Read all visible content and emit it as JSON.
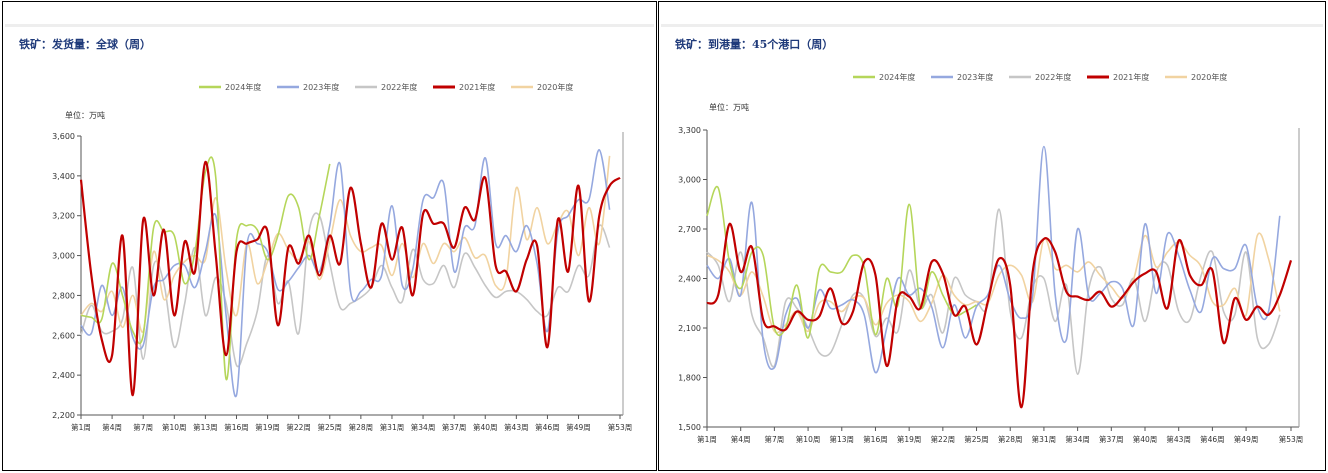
{
  "colors": {
    "2024年度": "#b5d65a",
    "2023年度": "#95a8df",
    "2022年度": "#c6c6c6",
    "2021年度": "#c00000",
    "2020年度": "#f1d3a1"
  },
  "chart_data": [
    {
      "type": "line",
      "title": "铁矿：发货量：全球（周）",
      "unit_label": "单位：万吨",
      "xlabel": "",
      "ylabel": "",
      "ylim": [
        2200,
        3600
      ],
      "yticks": [
        2200,
        2400,
        2600,
        2800,
        3000,
        3200,
        3400,
        3600
      ],
      "ytick_labels": [
        "2,200",
        "2,400",
        "2,600",
        "2,800",
        "3,000",
        "3,200",
        "3,400",
        "3,600"
      ],
      "xlim": [
        1,
        53
      ],
      "xticks": [
        1,
        4,
        7,
        10,
        13,
        16,
        19,
        22,
        25,
        28,
        31,
        34,
        37,
        40,
        43,
        46,
        49,
        53
      ],
      "xtick_labels": [
        "第1周",
        "第4周",
        "第7周",
        "第10周",
        "第13周",
        "第16周",
        "第19周",
        "第22周",
        "第25周",
        "第28周",
        "第31周",
        "第34周",
        "第37周",
        "第40周",
        "第43周",
        "第46周",
        "第49周",
        "第53周"
      ],
      "legend": [
        "2024年度",
        "2023年度",
        "2022年度",
        "2021年度",
        "2020年度"
      ],
      "legend_position": "top",
      "grid": false,
      "series": [
        {
          "name": "2024年度",
          "x": [
            1,
            2,
            3,
            4,
            5,
            6,
            7,
            8,
            9,
            10,
            11,
            12,
            13,
            14,
            15,
            16,
            17,
            18,
            19,
            20,
            21,
            22,
            23,
            24,
            25
          ],
          "values": [
            2700,
            2690,
            2680,
            2960,
            2800,
            2620,
            2600,
            3140,
            3120,
            3100,
            2860,
            3020,
            3420,
            3390,
            2380,
            3080,
            3150,
            3130,
            2980,
            3100,
            3300,
            3240,
            2980,
            3200,
            3460
          ]
        },
        {
          "name": "2023年度",
          "x": [
            1,
            2,
            3,
            4,
            5,
            6,
            7,
            8,
            9,
            10,
            11,
            12,
            13,
            14,
            15,
            16,
            17,
            18,
            19,
            20,
            21,
            22,
            23,
            24,
            25,
            26,
            27,
            28,
            29,
            30,
            31,
            32,
            33,
            34,
            35,
            36,
            37,
            38,
            39,
            40,
            41,
            42,
            43,
            44,
            45,
            46,
            47,
            48,
            49,
            50,
            51,
            52
          ],
          "values": [
            2650,
            2610,
            2850,
            2700,
            2840,
            2590,
            2550,
            2840,
            2880,
            2950,
            2950,
            2840,
            3020,
            3200,
            2700,
            2300,
            3050,
            3060,
            3020,
            2830,
            2870,
            2940,
            3000,
            2920,
            3150,
            3460,
            2820,
            2820,
            2880,
            2900,
            3250,
            2850,
            2930,
            3280,
            3290,
            3360,
            2920,
            3140,
            3150,
            3490,
            3060,
            3100,
            3020,
            3150,
            2960,
            2620,
            3120,
            3200,
            3280,
            3280,
            3530,
            3230
          ]
        },
        {
          "name": "2022年度",
          "x": [
            1,
            2,
            3,
            4,
            5,
            6,
            7,
            8,
            9,
            10,
            11,
            12,
            13,
            14,
            15,
            16,
            17,
            18,
            19,
            20,
            21,
            22,
            23,
            24,
            25,
            26,
            27,
            28,
            29,
            30,
            31,
            32,
            33,
            34,
            35,
            36,
            37,
            38,
            39,
            40,
            41,
            42,
            43,
            44,
            45,
            46,
            47,
            48,
            49,
            50,
            51,
            52
          ],
          "values": [
            2600,
            2750,
            2620,
            2620,
            2680,
            2940,
            2480,
            2950,
            2860,
            2540,
            2760,
            3040,
            2700,
            2890,
            2760,
            2450,
            2560,
            2720,
            3000,
            2760,
            2870,
            2610,
            3120,
            3200,
            2960,
            2740,
            2760,
            2790,
            2840,
            2950,
            2840,
            2770,
            3030,
            2880,
            2860,
            2950,
            2840,
            3010,
            2940,
            2850,
            2790,
            2820,
            2820,
            2780,
            2720,
            2700,
            2840,
            2820,
            2950,
            2900,
            3150,
            3040
          ]
        },
        {
          "name": "2021年度",
          "x": [
            1,
            2,
            3,
            4,
            5,
            6,
            7,
            8,
            9,
            10,
            11,
            12,
            13,
            14,
            15,
            16,
            17,
            18,
            19,
            20,
            21,
            22,
            23,
            24,
            25,
            26,
            27,
            28,
            29,
            30,
            31,
            32,
            33,
            34,
            35,
            36,
            37,
            38,
            39,
            40,
            41,
            42,
            43,
            44,
            45,
            46,
            47,
            48,
            49,
            50,
            51,
            52,
            53
          ],
          "values": [
            3380,
            2900,
            2580,
            2500,
            3100,
            2300,
            3180,
            2800,
            3130,
            2700,
            3070,
            2920,
            3470,
            3000,
            2500,
            3020,
            3060,
            3080,
            3120,
            2650,
            3040,
            2960,
            3100,
            2900,
            3100,
            2960,
            3340,
            3060,
            2840,
            3160,
            2980,
            3140,
            2800,
            3210,
            3160,
            3160,
            3040,
            3240,
            3180,
            3390,
            2950,
            2920,
            2820,
            2980,
            3050,
            2540,
            3180,
            2920,
            3350,
            2770,
            3200,
            3350,
            3390
          ]
        },
        {
          "name": "2020年度",
          "x": [
            1,
            2,
            3,
            4,
            5,
            6,
            7,
            8,
            9,
            10,
            11,
            12,
            13,
            14,
            15,
            16,
            17,
            18,
            19,
            20,
            21,
            22,
            23,
            24,
            25,
            26,
            27,
            28,
            29,
            30,
            31,
            32,
            33,
            34,
            35,
            36,
            37,
            38,
            39,
            40,
            41,
            42,
            43,
            44,
            45,
            46,
            47,
            48,
            49,
            50,
            51,
            52
          ],
          "values": [
            2700,
            2760,
            2720,
            2820,
            2640,
            2800,
            2620,
            3020,
            2780,
            2900,
            2970,
            3000,
            2980,
            3290,
            2930,
            2700,
            3060,
            2860,
            2970,
            3110,
            3030,
            2980,
            3070,
            2880,
            3070,
            3280,
            3100,
            3020,
            3040,
            3050,
            2900,
            3060,
            2890,
            3060,
            2960,
            3060,
            3020,
            3090,
            2990,
            3000,
            2850,
            2880,
            3340,
            3080,
            3240,
            3060,
            3160,
            3220,
            3000,
            3240,
            3060,
            3500
          ]
        }
      ]
    },
    {
      "type": "line",
      "title": "铁矿：到港量：45个港口（周）",
      "unit_label": "单位：万吨",
      "xlabel": "",
      "ylabel": "",
      "ylim": [
        1500,
        3300
      ],
      "yticks": [
        1500,
        1800,
        2100,
        2400,
        2700,
        3000,
        3300
      ],
      "ytick_labels": [
        "1,500",
        "1,800",
        "2,100",
        "2,400",
        "2,700",
        "3,000",
        "3,300"
      ],
      "xlim": [
        1,
        53
      ],
      "xticks": [
        1,
        4,
        7,
        10,
        13,
        16,
        19,
        22,
        25,
        28,
        31,
        34,
        37,
        40,
        43,
        46,
        49,
        53
      ],
      "xtick_labels": [
        "第1周",
        "第4周",
        "第7周",
        "第10周",
        "第13周",
        "第16周",
        "第19周",
        "第22周",
        "第25周",
        "第28周",
        "第31周",
        "第34周",
        "第37周",
        "第40周",
        "第43周",
        "第46周",
        "第49周",
        "第53周"
      ],
      "legend": [
        "2024年度",
        "2023年度",
        "2022年度",
        "2021年度",
        "2020年度"
      ],
      "legend_position": "top",
      "grid": false,
      "series": [
        {
          "name": "2024年度",
          "x": [
            1,
            2,
            3,
            4,
            5,
            6,
            7,
            8,
            9,
            10,
            11,
            12,
            13,
            14,
            15,
            16,
            17,
            18,
            19,
            20,
            21,
            22,
            23,
            24,
            25
          ],
          "values": [
            2780,
            2950,
            2500,
            2340,
            2560,
            2540,
            2100,
            2100,
            2360,
            2040,
            2460,
            2440,
            2440,
            2540,
            2470,
            2060,
            2400,
            2240,
            2850,
            2230,
            2440,
            2300,
            2180,
            2200,
            2240
          ]
        },
        {
          "name": "2023年度",
          "x": [
            1,
            2,
            3,
            4,
            5,
            6,
            7,
            8,
            9,
            10,
            11,
            12,
            13,
            14,
            15,
            16,
            17,
            18,
            19,
            20,
            21,
            22,
            23,
            24,
            25,
            26,
            27,
            28,
            29,
            30,
            31,
            32,
            33,
            34,
            35,
            36,
            37,
            38,
            39,
            40,
            41,
            42,
            43,
            44,
            45,
            46,
            47,
            48,
            49,
            50,
            51,
            52
          ],
          "values": [
            2480,
            2400,
            2520,
            2300,
            2860,
            2020,
            1860,
            2180,
            2280,
            2100,
            2330,
            2220,
            2240,
            2270,
            2180,
            1830,
            2100,
            2400,
            2300,
            2340,
            2230,
            1980,
            2240,
            2040,
            2230,
            2300,
            2480,
            2270,
            2160,
            2300,
            3200,
            2300,
            2030,
            2700,
            2290,
            2310,
            2380,
            2340,
            2120,
            2730,
            2310,
            2670,
            2540,
            2330,
            2200,
            2520,
            2460,
            2460,
            2600,
            2230,
            2200,
            2780
          ]
        },
        {
          "name": "2022年度",
          "x": [
            1,
            2,
            3,
            4,
            5,
            6,
            7,
            8,
            9,
            10,
            11,
            12,
            13,
            14,
            15,
            16,
            17,
            18,
            19,
            20,
            21,
            22,
            23,
            24,
            25,
            26,
            27,
            28,
            29,
            30,
            31,
            32,
            33,
            34,
            35,
            36,
            37,
            38,
            39,
            40,
            41,
            42,
            43,
            44,
            45,
            46,
            47,
            48,
            49,
            50,
            51,
            52
          ],
          "values": [
            2560,
            2480,
            2260,
            2560,
            2180,
            2040,
            1870,
            2260,
            2220,
            2100,
            1950,
            1950,
            2120,
            2300,
            2280,
            2050,
            2160,
            2080,
            2450,
            2220,
            2300,
            2070,
            2400,
            2300,
            2260,
            2240,
            2820,
            2200,
            2040,
            2350,
            2400,
            2140,
            2360,
            1820,
            2340,
            2470,
            2280,
            2240,
            2400,
            2140,
            2440,
            2480,
            2200,
            2150,
            2420,
            2560,
            2200,
            2180,
            2560,
            2040,
            2000,
            2180
          ]
        },
        {
          "name": "2021年度",
          "x": [
            1,
            2,
            3,
            4,
            5,
            6,
            7,
            8,
            9,
            10,
            11,
            12,
            13,
            14,
            15,
            16,
            17,
            18,
            19,
            20,
            21,
            22,
            23,
            24,
            25,
            26,
            27,
            28,
            29,
            30,
            31,
            32,
            33,
            34,
            35,
            36,
            37,
            38,
            39,
            40,
            41,
            42,
            43,
            44,
            45,
            46,
            47,
            48,
            49,
            50,
            51,
            52,
            53
          ],
          "values": [
            2250,
            2300,
            2730,
            2440,
            2590,
            2150,
            2110,
            2090,
            2200,
            2150,
            2170,
            2340,
            2130,
            2200,
            2500,
            2420,
            1870,
            2280,
            2290,
            2220,
            2500,
            2430,
            2180,
            2230,
            2000,
            2260,
            2520,
            2360,
            1620,
            2440,
            2640,
            2560,
            2320,
            2290,
            2270,
            2320,
            2230,
            2290,
            2380,
            2430,
            2440,
            2220,
            2630,
            2420,
            2360,
            2450,
            2010,
            2280,
            2150,
            2230,
            2180,
            2300,
            2510
          ]
        },
        {
          "name": "2020年度",
          "x": [
            1,
            2,
            3,
            4,
            5,
            6,
            7,
            8,
            9,
            10,
            11,
            12,
            13,
            14,
            15,
            16,
            17,
            18,
            19,
            20,
            21,
            22,
            23,
            24,
            25,
            26,
            27,
            28,
            29,
            30,
            31,
            32,
            33,
            34,
            35,
            36,
            37,
            38,
            39,
            40,
            41,
            42,
            43,
            44,
            45,
            46,
            47,
            48,
            49,
            50,
            51,
            52
          ],
          "values": [
            2540,
            2510,
            2440,
            2300,
            2440,
            2290,
            2080,
            2120,
            2200,
            2080,
            2250,
            2260,
            2200,
            2280,
            2280,
            2120,
            2250,
            2300,
            2260,
            2140,
            2250,
            2420,
            2300,
            2240,
            2260,
            2250,
            2420,
            2480,
            2420,
            2260,
            2640,
            2460,
            2480,
            2440,
            2500,
            2420,
            2350,
            2280,
            2400,
            2660,
            2470,
            2560,
            2620,
            2540,
            2470,
            2260,
            2240,
            2340,
            2180,
            2660,
            2520,
            2200
          ]
        }
      ]
    }
  ]
}
